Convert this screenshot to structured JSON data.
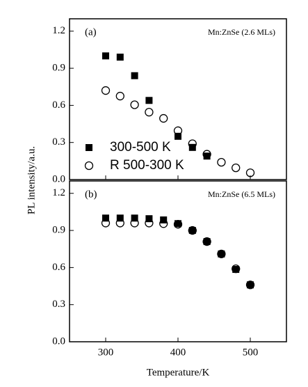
{
  "chart_data": [
    {
      "type": "scatter",
      "panel_label": "(a)",
      "annotation": "Mn:ZnSe (2.6 MLs)",
      "ylabel": "PL intensity/a.u.",
      "xlim": [
        250,
        550
      ],
      "xticks": [
        300,
        400,
        500
      ],
      "ylim": [
        0,
        1.3
      ],
      "yticks": [
        {
          "value": 0,
          "label": "0.0"
        },
        0.3,
        0.6,
        0.9,
        1.2
      ],
      "legend": "lower left",
      "series": [
        {
          "name": "300-500 K",
          "marker": "square",
          "color": "#000000",
          "x": [
            300,
            320,
            340,
            360,
            400,
            420,
            440
          ],
          "values": [
            1.0,
            0.99,
            0.84,
            0.64,
            0.35,
            0.26,
            0.19
          ]
        },
        {
          "name": "R 500-300 K",
          "marker": "circle",
          "color": "#000000",
          "x": [
            300,
            320,
            340,
            360,
            380,
            400,
            420,
            440,
            460,
            480,
            500
          ],
          "values": [
            0.72,
            0.675,
            0.605,
            0.545,
            0.495,
            0.395,
            0.29,
            0.205,
            0.14,
            0.095,
            0.055
          ]
        }
      ]
    },
    {
      "type": "scatter",
      "panel_label": "(b)",
      "annotation": "Mn:ZnSe (6.5 MLs)",
      "xlabel": "Temperature/K",
      "xlim": [
        250,
        550
      ],
      "xticks": [
        300,
        400,
        500
      ],
      "ylim": [
        0,
        1.3
      ],
      "yticks": [
        {
          "value": 0,
          "label": "0.0"
        },
        0.3,
        0.6,
        0.9,
        1.2
      ],
      "series": [
        {
          "marker": "square",
          "color": "#000000",
          "x": [
            300,
            320,
            340,
            360,
            380,
            400,
            420,
            440,
            460,
            480,
            500
          ],
          "values": [
            1.0,
            1.0,
            1.0,
            0.995,
            0.985,
            0.955,
            0.9,
            0.81,
            0.71,
            0.585,
            0.46
          ]
        },
        {
          "marker": "circle",
          "color": "#000000",
          "x": [
            300,
            320,
            340,
            360,
            380,
            400,
            420,
            440,
            460,
            480,
            500
          ],
          "values": [
            0.96,
            0.96,
            0.96,
            0.96,
            0.955,
            0.95,
            0.9,
            0.81,
            0.71,
            0.59,
            0.46
          ]
        }
      ]
    }
  ]
}
